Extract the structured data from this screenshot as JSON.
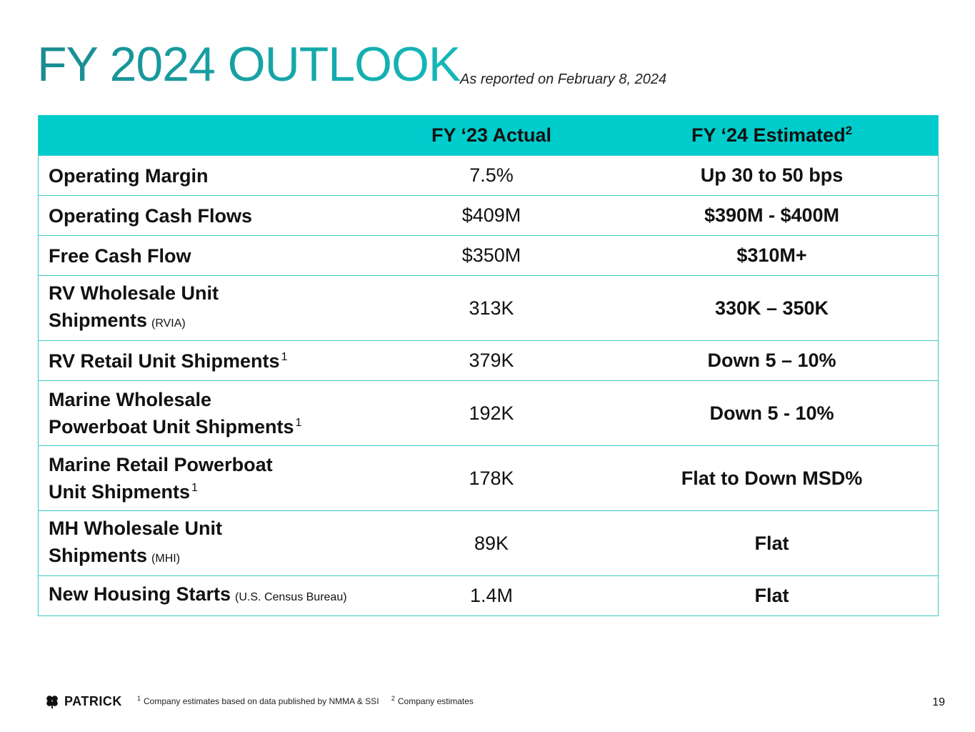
{
  "header": {
    "title": "FY 2024 OUTLOOK",
    "subtitle": "As reported on February 8, 2024"
  },
  "table": {
    "col_actual": "FY ‘23 Actual",
    "col_estimated": "FY ‘24 Estimated",
    "col_estimated_sup": "2",
    "rows": [
      {
        "metric": "Operating Margin",
        "source": "",
        "sup": "",
        "actual": "7.5%",
        "estimated": "Up 30 to 50 bps"
      },
      {
        "metric": "Operating Cash Flows",
        "source": "",
        "sup": "",
        "actual": "$409M",
        "estimated": "$390M - $400M"
      },
      {
        "metric": "Free Cash Flow",
        "source": "",
        "sup": "",
        "actual": "$350M",
        "estimated": "$310M+"
      },
      {
        "metric_l1": "RV Wholesale Unit",
        "metric_l2": "Shipments",
        "source": "(RVIA)",
        "sup": "",
        "actual": "313K",
        "estimated": "330K – 350K"
      },
      {
        "metric": "RV Retail Unit Shipments",
        "source": "",
        "sup": "1",
        "actual": "379K",
        "estimated": "Down 5 – 10%"
      },
      {
        "metric_l1": "Marine Wholesale",
        "metric_l2": "Powerboat Unit Shipments",
        "source": "",
        "sup": "1",
        "actual": "192K",
        "estimated": "Down 5 - 10%"
      },
      {
        "metric_l1": "Marine Retail Powerboat",
        "metric_l2": "Unit Shipments",
        "source": "",
        "sup": "1",
        "actual": "178K",
        "estimated": "Flat to Down MSD%"
      },
      {
        "metric_l1": "MH Wholesale Unit",
        "metric_l2": "Shipments",
        "source": "(MHI)",
        "sup": "",
        "actual": "89K",
        "estimated": "Flat"
      },
      {
        "metric": "New Housing Starts",
        "source": "(U.S. Census Bureau)",
        "sup": "",
        "actual": "1.4M",
        "estimated": "Flat"
      }
    ]
  },
  "footer": {
    "logo_text": "PATRICK",
    "footnote1_sup": "1",
    "footnote1": "Company estimates based on data published by NMMA & SSI",
    "footnote2_sup": "2",
    "footnote2": "Company estimates",
    "page_number": "19"
  },
  "colors": {
    "header_bg": "#00cccc",
    "title_teal": "#1a9c9c",
    "border": "#3cc8c8"
  },
  "icons": {
    "logo": "shamrock-icon"
  }
}
